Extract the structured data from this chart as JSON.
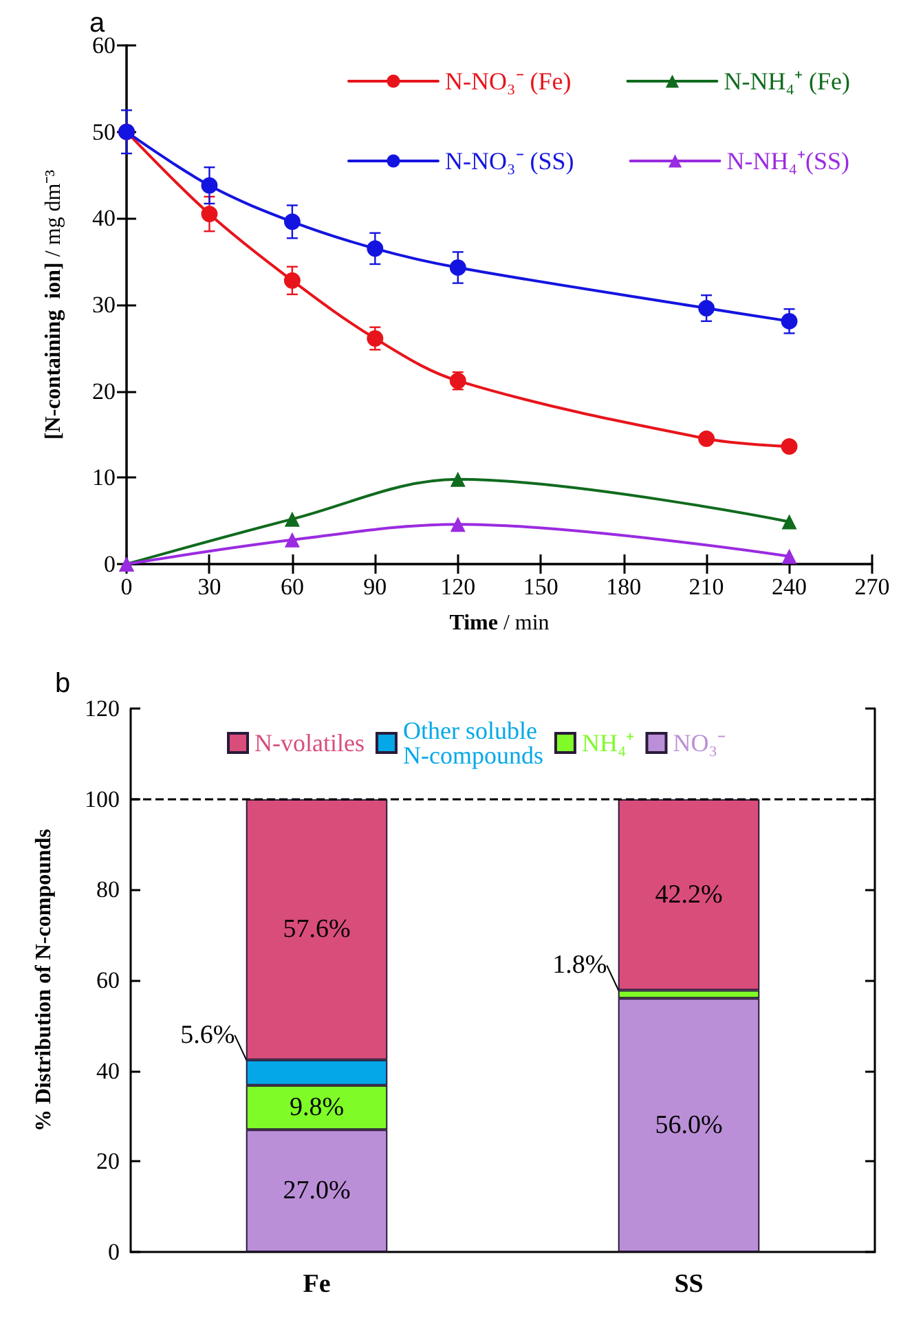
{
  "chart_data": [
    {
      "type": "line",
      "title": "a",
      "xlabel": "Time / min",
      "ylabel": "[N-containing  ion] / mg dm⁻³",
      "x": [
        0,
        30,
        60,
        90,
        120,
        210,
        240
      ],
      "xlim": [
        0,
        270
      ],
      "xticks": [
        0,
        30,
        60,
        90,
        120,
        150,
        180,
        210,
        240,
        270
      ],
      "ylim": [
        0,
        60
      ],
      "yticks": [
        0,
        10,
        20,
        30,
        40,
        50,
        60
      ],
      "grid": false,
      "legend": "top right",
      "line_style": "solid",
      "series": [
        {
          "name": "N-NO₃⁻ (Fe)",
          "color": "#e8141b",
          "marker": "circle",
          "values": [
            50,
            40.5,
            32.8,
            26.1,
            21.2,
            14.5,
            13.6
          ],
          "errors": [
            null,
            2,
            1.6,
            1.3,
            1,
            null,
            null
          ]
        },
        {
          "name": "N-NH₄⁺ (Fe)",
          "color": "#106b1e",
          "marker": "triangle",
          "x": [
            0,
            60,
            120,
            240
          ],
          "values": [
            0,
            5.2,
            9.8,
            4.9
          ]
        },
        {
          "name": "N-NO₃⁻ (SS)",
          "color": "#1414e0",
          "marker": "circle",
          "values": [
            50,
            43.8,
            39.6,
            36.5,
            34.3,
            29.6,
            28.1
          ],
          "errors": [
            2.5,
            2.1,
            1.9,
            1.8,
            1.8,
            1.5,
            1.4
          ]
        },
        {
          "name": "N-NH₄⁺(SS)",
          "color": "#9a2be0",
          "marker": "triangle",
          "x": [
            0,
            60,
            120,
            240
          ],
          "values": [
            0,
            2.8,
            4.6,
            0.9
          ]
        }
      ]
    },
    {
      "type": "bar",
      "title": "b",
      "ylabel": "% Distribution of N-compounds",
      "categories": [
        "Fe",
        "SS"
      ],
      "stacked": true,
      "ylim": [
        0,
        120
      ],
      "yticks": [
        0,
        20,
        40,
        60,
        80,
        100,
        120
      ],
      "grid": false,
      "legend": "top",
      "ref_lines": [
        {
          "axis": "y",
          "value": 100,
          "color": "#000000",
          "line_style": "dashed"
        }
      ],
      "series": [
        {
          "name": "NO₃⁻",
          "color": "#bb8fd8",
          "values": [
            27.0,
            56.0
          ],
          "value_labels": [
            "27.0%",
            "56.0%"
          ]
        },
        {
          "name": "NH₄⁺",
          "color": "#7ffc27",
          "values": [
            9.8,
            1.8
          ],
          "value_labels": [
            "9.8%",
            "1.8%"
          ]
        },
        {
          "name": "Other soluble\nN-compounds",
          "color": "#04a8e8",
          "values": [
            5.6,
            null
          ],
          "value_labels": [
            "5.6%",
            null
          ]
        },
        {
          "name": "N-volatiles",
          "color": "#d94d7b",
          "values": [
            57.6,
            42.2
          ],
          "value_labels": [
            "57.6%",
            "42.2%"
          ]
        }
      ]
    }
  ]
}
